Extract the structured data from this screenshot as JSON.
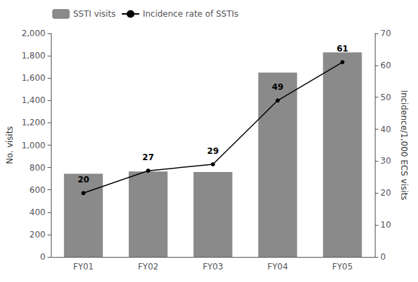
{
  "chart_data": {
    "type": "bar",
    "categories": [
      "FY01",
      "FY02",
      "FY03",
      "FY04",
      "FY05"
    ],
    "series": [
      {
        "name": "SSTI visits",
        "type": "bar",
        "color": "#8a8a8a",
        "values": [
          745,
          765,
          760,
          1650,
          1830
        ]
      },
      {
        "name": "Incidence rate of SSTIs",
        "type": "line",
        "color": "#000000",
        "marker": "circle",
        "axis": "y2",
        "data_labels": true,
        "values": [
          20,
          27,
          29,
          49,
          61
        ]
      }
    ],
    "ylabel": "No. visits",
    "y2label": "Incidence/1,000 ECS visits",
    "ylim": [
      0,
      2000
    ],
    "yticks": [
      0,
      200,
      400,
      600,
      800,
      {
        "value": 1000,
        "label": "1,000"
      },
      {
        "value": 1200,
        "label": "1,200"
      },
      {
        "value": 1400,
        "label": "1,400"
      },
      {
        "value": 1600,
        "label": "1,600"
      },
      {
        "value": 1800,
        "label": "1,800"
      },
      {
        "value": 2000,
        "label": "2,000"
      }
    ],
    "y2lim": [
      0,
      70
    ],
    "y2ticks": [
      0,
      10,
      20,
      30,
      40,
      50,
      60,
      70
    ],
    "legend": "upper left",
    "grid": false
  }
}
